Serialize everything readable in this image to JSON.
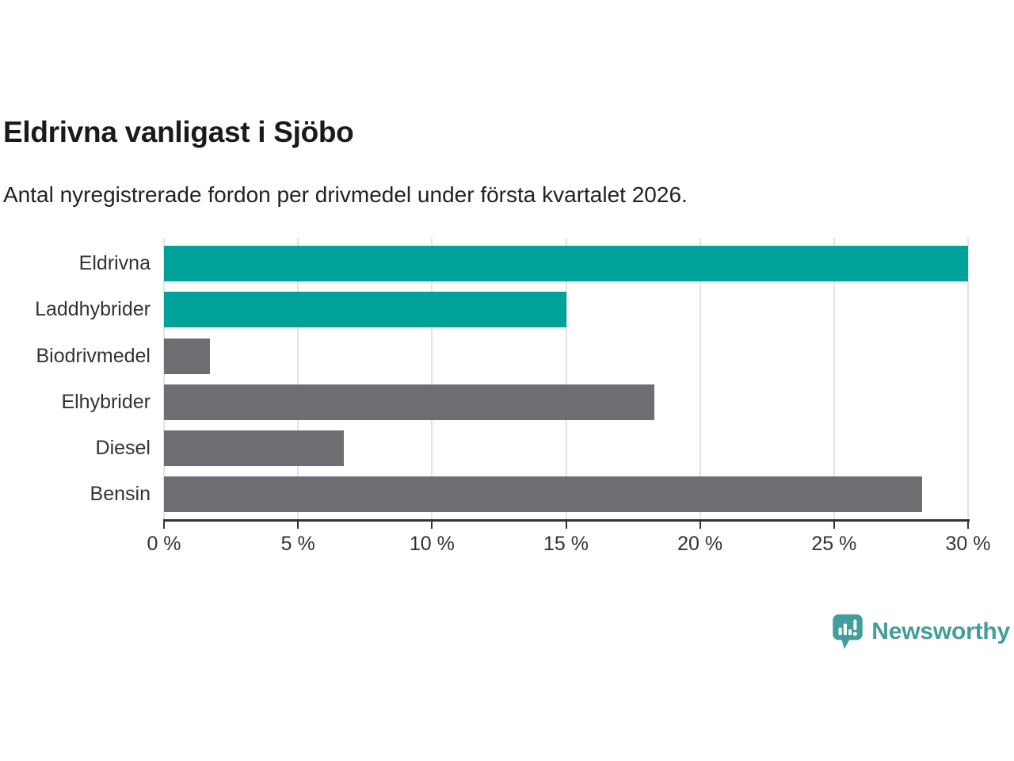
{
  "header": {
    "title": "Eldrivna vanligast i Sjöbo",
    "subtitle": "Antal nyregistrerade fordon per drivmedel under första kvartalet 2026."
  },
  "chart_data": {
    "type": "bar",
    "orientation": "horizontal",
    "title": "Eldrivna vanligast i Sjöbo",
    "subtitle": "Antal nyregistrerade fordon per drivmedel under första kvartalet 2026.",
    "categories": [
      "Eldrivna",
      "Laddhybrider",
      "Biodrivmedel",
      "Elhybrider",
      "Diesel",
      "Bensin"
    ],
    "values": [
      30.0,
      15.0,
      1.7,
      18.3,
      6.7,
      28.3
    ],
    "unit": "%",
    "bar_colors": [
      "#00a29a",
      "#00a29a",
      "#6d6d72",
      "#6d6d72",
      "#6d6d72",
      "#6d6d72"
    ],
    "highlight_color": "#00a29a",
    "default_color": "#6d6d72",
    "xlim": [
      0,
      30
    ],
    "x_ticks": [
      0,
      5,
      10,
      15,
      20,
      25,
      30
    ],
    "x_tick_labels": [
      "0 %",
      "5 %",
      "10 %",
      "15 %",
      "20 %",
      "25 %",
      "30 %"
    ],
    "xlabel": "",
    "ylabel": "",
    "grid": true,
    "gridline_color": "#e3e3e3",
    "axis_color": "#333333",
    "legend": "none"
  },
  "footer": {
    "logo_text": "Newsworthy",
    "logo_color": "#429d9c",
    "logo_icon": "newsworthy-speech-bubble-bar-chart-icon"
  }
}
